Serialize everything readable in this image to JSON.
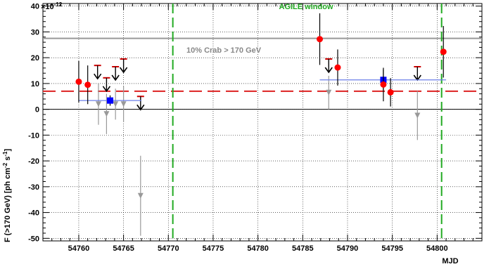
{
  "chart_data": {
    "type": "scatter",
    "xlabel": "MJD",
    "ylabel_parts": [
      "F (>170 GeV) [ph cm",
      "-2",
      " s",
      "-1",
      "]"
    ],
    "y_exponent_label": "×10",
    "y_exponent_power": "-12",
    "xlim": [
      54756,
      54805
    ],
    "ylim": [
      -51,
      41
    ],
    "x_ticks": [
      54760,
      54765,
      54770,
      54775,
      54780,
      54785,
      54790,
      54795,
      54800
    ],
    "x_tick_labels": [
      "54760",
      "54765",
      "54770",
      "54775",
      "54780",
      "54785",
      "54790",
      "54795",
      "54800"
    ],
    "y_ticks": [
      -50,
      -40,
      -30,
      -20,
      -10,
      0,
      10,
      20,
      30,
      40
    ],
    "y_tick_labels": [
      "-50",
      "-40",
      "-30",
      "-20",
      "-10",
      "0",
      "10",
      "20",
      "30",
      "40"
    ],
    "grid": true,
    "agile_window": {
      "label": "AGILE window",
      "start": 54770.5,
      "end": 54800.5,
      "color": "#22aa22"
    },
    "crab_line": {
      "label": "10% Crab > 170 GeV",
      "y": 27.5,
      "color": "#999999"
    },
    "mean_flux_line": {
      "y": 7,
      "color": "#dd2222"
    },
    "flux_points": [
      {
        "x": 54760.0,
        "y": 10.7,
        "err": 8.0
      },
      {
        "x": 54761.0,
        "y": 9.5,
        "err": 7.5
      },
      {
        "x": 54786.9,
        "y": 27.2,
        "err": 10.0
      },
      {
        "x": 54788.9,
        "y": 16.2,
        "err": 7.0
      },
      {
        "x": 54794.0,
        "y": 9.6,
        "err": 6.5
      },
      {
        "x": 54794.8,
        "y": 6.6,
        "err": 5.5
      },
      {
        "x": 54800.7,
        "y": 22.3,
        "err": 10.0
      }
    ],
    "negative_points": [
      {
        "x": 54762.2,
        "y": 2.0,
        "err": 8.0
      },
      {
        "x": 54763.1,
        "y": -1.8,
        "err": 7.8
      },
      {
        "x": 54764.1,
        "y": 2.0,
        "err": 6.0
      },
      {
        "x": 54765.0,
        "y": 2.0,
        "err": 7.0
      },
      {
        "x": 54766.9,
        "y": -33.5,
        "err": 15.5
      },
      {
        "x": 54787.9,
        "y": 6.5,
        "err": 6.5
      },
      {
        "x": 54797.8,
        "y": -2.4,
        "err": 9.5
      }
    ],
    "upper_limits": [
      {
        "x": 54762.1,
        "y": 17.0
      },
      {
        "x": 54763.1,
        "y": 12.2
      },
      {
        "x": 54764.1,
        "y": 16.5
      },
      {
        "x": 54765.0,
        "y": 19.5
      },
      {
        "x": 54766.9,
        "y": 5.0
      },
      {
        "x": 54787.9,
        "y": 19.5
      },
      {
        "x": 54797.8,
        "y": 16.5
      }
    ],
    "average_points": [
      {
        "x": 54763.5,
        "y": 3.4,
        "err": 2.0,
        "x0": 54760.0,
        "x1": 54767.0
      },
      {
        "x": 54794.0,
        "y": 11.4,
        "err": 4.0,
        "x0": 54786.9,
        "x1": 54801.0
      }
    ],
    "colors": {
      "flux": "#ff0000",
      "negative": "#999999",
      "upper_limit": "#000000",
      "average": "#0000ff",
      "average_line": "#6b7fe8"
    }
  }
}
